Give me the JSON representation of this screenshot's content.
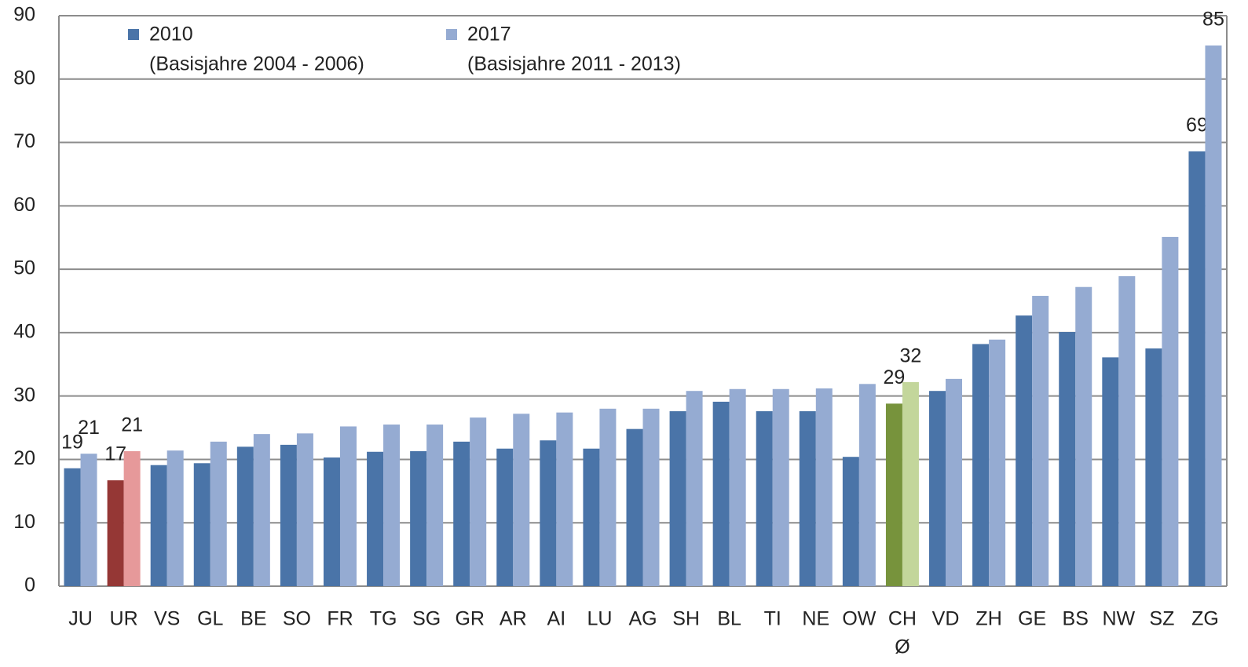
{
  "chart_data": {
    "type": "bar",
    "categories": [
      "JU",
      "UR",
      "VS",
      "GL",
      "BE",
      "SO",
      "FR",
      "TG",
      "SG",
      "GR",
      "AR",
      "AI",
      "LU",
      "AG",
      "SH",
      "BL",
      "TI",
      "NE",
      "OW",
      "CH",
      "VD",
      "ZH",
      "GE",
      "BS",
      "NW",
      "SZ",
      "ZG"
    ],
    "x_sublabels": [
      null,
      null,
      null,
      null,
      null,
      null,
      null,
      null,
      null,
      null,
      null,
      null,
      null,
      null,
      null,
      null,
      null,
      null,
      null,
      "Ø",
      null,
      null,
      null,
      null,
      null,
      null,
      null
    ],
    "series": [
      {
        "name": "2010",
        "note": "(Basisjahre 2004 - 2006)",
        "color": "#4a74a8",
        "colors": [
          "#4a74a8",
          "#953735",
          "#4a74a8",
          "#4a74a8",
          "#4a74a8",
          "#4a74a8",
          "#4a74a8",
          "#4a74a8",
          "#4a74a8",
          "#4a74a8",
          "#4a74a8",
          "#4a74a8",
          "#4a74a8",
          "#4a74a8",
          "#4a74a8",
          "#4a74a8",
          "#4a74a8",
          "#4a74a8",
          "#4a74a8",
          "#77933c",
          "#4a74a8",
          "#4a74a8",
          "#4a74a8",
          "#4a74a8",
          "#4a74a8",
          "#4a74a8",
          "#4a74a8"
        ],
        "values": [
          18.6,
          16.7,
          19.1,
          19.4,
          22.0,
          22.3,
          20.3,
          21.2,
          21.3,
          22.8,
          21.7,
          23.0,
          21.7,
          24.8,
          27.6,
          29.1,
          27.6,
          27.6,
          20.4,
          28.8,
          30.8,
          38.2,
          42.7,
          40.1,
          36.1,
          37.5,
          68.6
        ],
        "value_labels": [
          "19",
          "17",
          null,
          null,
          null,
          null,
          null,
          null,
          null,
          null,
          null,
          null,
          null,
          null,
          null,
          null,
          null,
          null,
          null,
          "29",
          null,
          null,
          null,
          null,
          null,
          null,
          "69"
        ]
      },
      {
        "name": "2017",
        "note": "(Basisjahre 2011 - 2013)",
        "color": "#95abd2",
        "colors": [
          "#95abd2",
          "#e6999a",
          "#95abd2",
          "#95abd2",
          "#95abd2",
          "#95abd2",
          "#95abd2",
          "#95abd2",
          "#95abd2",
          "#95abd2",
          "#95abd2",
          "#95abd2",
          "#95abd2",
          "#95abd2",
          "#95abd2",
          "#95abd2",
          "#95abd2",
          "#95abd2",
          "#95abd2",
          "#c3d69b",
          "#95abd2",
          "#95abd2",
          "#95abd2",
          "#95abd2",
          "#95abd2",
          "#95abd2",
          "#95abd2"
        ],
        "values": [
          20.9,
          21.3,
          21.4,
          22.8,
          24.0,
          24.1,
          25.2,
          25.5,
          25.5,
          26.6,
          27.2,
          27.4,
          28.0,
          28.0,
          30.8,
          31.1,
          31.1,
          31.2,
          31.9,
          32.2,
          32.7,
          38.9,
          45.8,
          47.2,
          48.9,
          55.1,
          85.3
        ],
        "value_labels": [
          "21",
          "21",
          null,
          null,
          null,
          null,
          null,
          null,
          null,
          null,
          null,
          null,
          null,
          null,
          null,
          null,
          null,
          null,
          null,
          "32",
          null,
          null,
          null,
          null,
          null,
          null,
          "85"
        ]
      }
    ],
    "ylim": [
      0,
      90
    ],
    "yticks": [
      0,
      10,
      20,
      30,
      40,
      50,
      60,
      70,
      80,
      90
    ],
    "grid": true
  }
}
